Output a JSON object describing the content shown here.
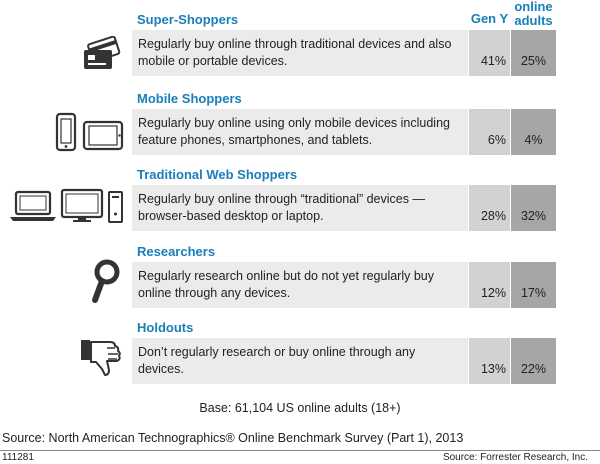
{
  "chart_data": {
    "type": "table",
    "columns": {
      "gen_y": "Gen Y",
      "online_adults": "online adults",
      "online_adults_line1": "online",
      "online_adults_line2": "adults"
    },
    "segments": [
      {
        "title": "Super-Shoppers",
        "description": "Regularly buy online through traditional devices and also mobile or portable devices.",
        "gen_y": "41%",
        "online_adults": "25%",
        "icon": "credit-cards-icon"
      },
      {
        "title": "Mobile Shoppers",
        "description": "Regularly buy online using only mobile devices including feature phones, smartphones, and tablets.",
        "gen_y": "6%",
        "online_adults": "4%",
        "icon": "phone-tablet-icon"
      },
      {
        "title": "Traditional Web Shoppers",
        "description": "Regularly buy online through “traditional” devices — browser-based desktop or laptop.",
        "gen_y": "28%",
        "online_adults": "32%",
        "icon": "laptop-desktop-icon"
      },
      {
        "title": "Researchers",
        "description": "Regularly research online but do not yet regularly buy online through any devices.",
        "gen_y": "12%",
        "online_adults": "17%",
        "icon": "magnifier-icon"
      },
      {
        "title": "Holdouts",
        "description": "Don’t regularly research or buy online through any devices.",
        "gen_y": "13%",
        "online_adults": "22%",
        "icon": "thumbs-down-icon"
      }
    ],
    "base": "Base: 61,104 US online adults (18+)"
  },
  "footer": {
    "source": "Source: North American Technographics® Online Benchmark Survey (Part 1), 2013",
    "id": "111281",
    "credit": "Source: Forrester Research, Inc."
  }
}
